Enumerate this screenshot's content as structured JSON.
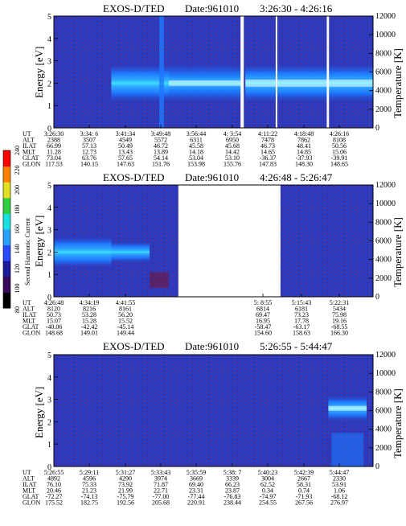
{
  "colors": {
    "background": "#2a3bbf",
    "band_outer": "#1e78ff",
    "band_mid": "#2fa8ff",
    "band_core": "#38e0ff",
    "band_peak": "#e9ffff",
    "noise": "#6a1a4a",
    "gap": "#ffffff"
  },
  "colorbar": {
    "label": "Second Harmonic Current",
    "ticks": [
      "80",
      "100",
      "120",
      "140",
      "160",
      "180",
      "200",
      "220",
      "240"
    ],
    "colors": [
      "#000000",
      "#3a0a5a",
      "#1a1a9a",
      "#2a4aff",
      "#2aa0ff",
      "#1ae0e0",
      "#30d040",
      "#e0e020",
      "#ff8000",
      "#ff0000"
    ]
  },
  "chart_data": [
    {
      "type": "heatmap",
      "title": "EXOS-D/TED",
      "date_label": "Date:961010",
      "time_range": "3:26:30 - 4:26:16",
      "ylabel": "Energy [eV]",
      "y2label": "Temperature [K]",
      "ylim": [
        0,
        5
      ],
      "y2lim": [
        0,
        12000
      ],
      "yticks": [
        "0",
        "1",
        "2",
        "3",
        "4",
        "5"
      ],
      "y2ticks": [
        "0",
        "2000",
        "4000",
        "6000",
        "8000",
        "10000",
        "12000"
      ],
      "band_center_eV": 2.0,
      "data_gaps": [
        [
          0.585,
          0.595
        ],
        [
          0.695,
          0.7
        ],
        [
          0.855,
          0.862
        ]
      ],
      "row_labels": [
        "UT",
        "ALT",
        "ILAT",
        "MLT",
        "GLAT",
        "GLON"
      ],
      "columns": [
        [
          "3:26:30",
          "2388",
          "66.99",
          "11.28",
          "73.04",
          "117.53"
        ],
        [
          "3:34: 6",
          "3507",
          "57.13",
          "12.73",
          "63.76",
          "140.15"
        ],
        [
          "3:41:34",
          "4549",
          "50.49",
          "13.43",
          "57.65",
          "147.63"
        ],
        [
          "3:49:48",
          "5572",
          "46.72",
          "13.89",
          "54.14",
          "151.76"
        ],
        [
          "3:56:44",
          "6311",
          "45.58",
          "14.18",
          "53.04",
          "153.98"
        ],
        [
          "4: 3:54",
          "6950",
          "45.68",
          "14.42",
          "53.10",
          "155.76"
        ],
        [
          "4:11:22",
          "7478",
          "46.73",
          "14.65",
          "-36.37",
          "147.83"
        ],
        [
          "4:18:48",
          "7862",
          "48.41",
          "14.85",
          "-37.93",
          "148.30"
        ],
        [
          "4:26:16",
          "8108",
          "50.56",
          "15.06",
          "-39.91",
          "148.65"
        ]
      ]
    },
    {
      "type": "heatmap",
      "title": "EXOS-D/TED",
      "date_label": "Date:961010",
      "time_range": "4:26:48 - 5:26:47",
      "ylabel": "Energy [eV]",
      "y2label": "Temperature [K]",
      "ylim": [
        0,
        5
      ],
      "y2lim": [
        0,
        12000
      ],
      "yticks": [
        "0",
        "1",
        "2",
        "3",
        "4",
        "5"
      ],
      "y2ticks": [
        "0",
        "2000",
        "4000",
        "6000",
        "8000",
        "10000",
        "12000"
      ],
      "band_center_eV": 2.0,
      "data_gaps": [
        [
          0.39,
          0.71
        ]
      ],
      "row_labels": [
        "UT",
        "ALT",
        "ILAT",
        "MLT",
        "GLAT",
        "GLON"
      ],
      "columns": [
        [
          "4:26:48",
          "8120",
          "50.73",
          "15.07",
          "-40.06",
          "148.68"
        ],
        [
          "4:34:19",
          "8216",
          "53.28",
          "15.28",
          "-42.42",
          "149.01"
        ],
        [
          "4:41:55",
          "8161",
          "56.20",
          "15.52",
          "-45.14",
          "149.44"
        ],
        [
          "5: 8:55",
          "6814",
          "69.47",
          "16.95",
          "-58.47",
          "154.60"
        ],
        [
          "5:15:43",
          "6181",
          "73.23",
          "17.78",
          "-63.17",
          "158.63"
        ],
        [
          "5:22:31",
          "5434",
          "75.98",
          "19.16",
          "-68.55",
          "166.30"
        ]
      ]
    },
    {
      "type": "heatmap",
      "title": "EXOS-D/TED",
      "date_label": "Date:961010",
      "time_range": "5:26:55 - 5:44:47",
      "ylabel": "Energy [eV]",
      "y2label": "Temperature [K]",
      "ylim": [
        0,
        5
      ],
      "y2lim": [
        0,
        12000
      ],
      "yticks": [
        "0",
        "1",
        "2",
        "3",
        "4",
        "5"
      ],
      "y2ticks": [
        "0",
        "2000",
        "4000",
        "6000",
        "8000",
        "10000",
        "12000"
      ],
      "band_center_eV": 2.6,
      "data_gaps": [],
      "row_labels": [
        "UT",
        "ALT",
        "ILAT",
        "MLT",
        "GLAT",
        "GLON"
      ],
      "columns": [
        [
          "5:26:55",
          "4892",
          "76.10",
          "20.46",
          "-72.27",
          "175.52"
        ],
        [
          "5:29:11",
          "4596",
          "75.33",
          "21.23",
          "-74.13",
          "182.75"
        ],
        [
          "5:31:27",
          "4290",
          "73.92",
          "21.99",
          "-75.79",
          "192.56"
        ],
        [
          "5:33:43",
          "3974",
          "71.87",
          "22.71",
          "-77.00",
          "205.68"
        ],
        [
          "5:35:59",
          "3669",
          "69.40",
          "23.31",
          "-77.44",
          "220.91"
        ],
        [
          "5:38: 7",
          "3339",
          "66.23",
          "23.87",
          "-76.83",
          "238.44"
        ],
        [
          "5:40:23",
          "3004",
          "62.52",
          "0.34",
          "-74.97",
          "254.55"
        ],
        [
          "5:42:39",
          "2667",
          "58.31",
          "0.74",
          "-71.93",
          "267.56"
        ],
        [
          "5:44:47",
          "2330",
          "53.91",
          "1.06",
          "-68.12",
          "276.97"
        ]
      ]
    }
  ]
}
